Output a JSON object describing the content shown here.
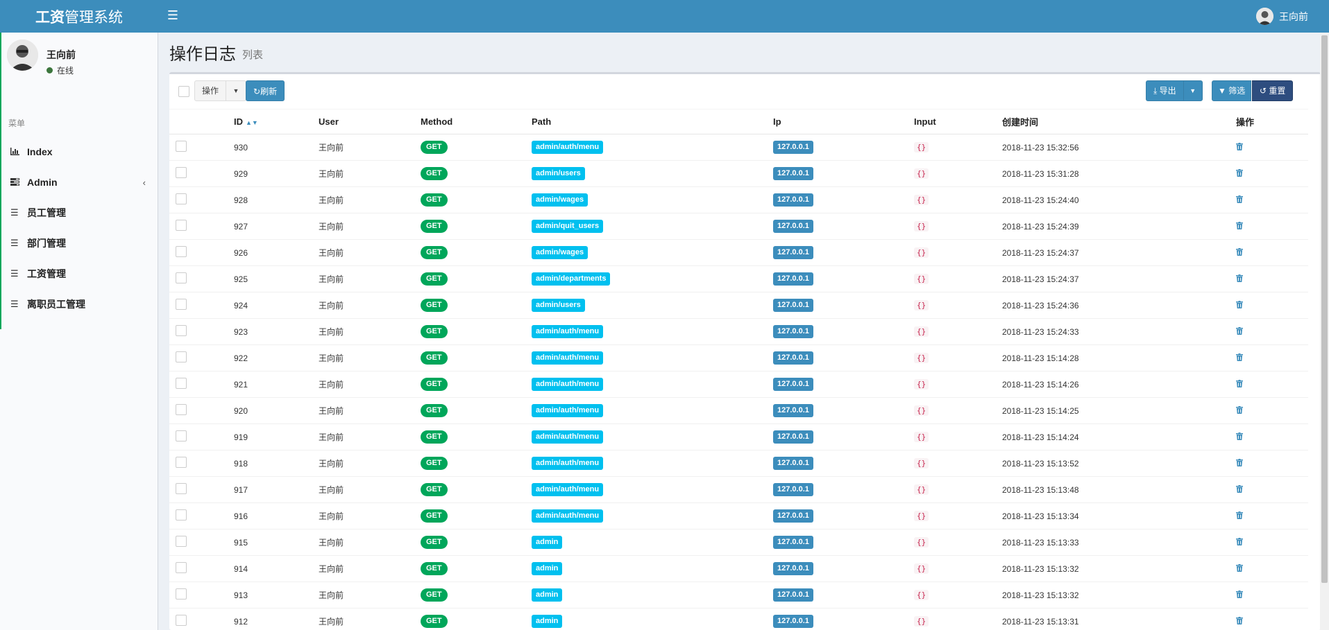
{
  "header": {
    "logo_bold": "工资",
    "logo_rest": "管理系统",
    "user_name": "王向前"
  },
  "sidebar": {
    "user_name": "王向前",
    "status": "在线",
    "menu_header": "菜单",
    "items": [
      {
        "label": "Index",
        "icon": "bar-chart-icon"
      },
      {
        "label": "Admin",
        "icon": "tasks-icon",
        "has_children": true
      },
      {
        "label": "员工管理",
        "icon": "bars-icon"
      },
      {
        "label": "部门管理",
        "icon": "bars-icon"
      },
      {
        "label": "工资管理",
        "icon": "bars-icon"
      },
      {
        "label": "离职员工管理",
        "icon": "bars-icon"
      }
    ]
  },
  "page": {
    "title": "操作日志",
    "subtitle": "列表"
  },
  "toolbar": {
    "operation_label": "操作",
    "refresh_label": "刷新",
    "export_label": "导出",
    "filter_label": "筛选",
    "reset_label": "重置"
  },
  "table": {
    "columns": [
      "ID",
      "User",
      "Method",
      "Path",
      "Ip",
      "Input",
      "创建时间",
      "操作"
    ],
    "rows": [
      {
        "id": "930",
        "user": "王向前",
        "method": "GET",
        "path": "admin/auth/menu",
        "ip": "127.0.0.1",
        "input": "{}",
        "created": "2018-11-23 15:32:56"
      },
      {
        "id": "929",
        "user": "王向前",
        "method": "GET",
        "path": "admin/users",
        "ip": "127.0.0.1",
        "input": "{}",
        "created": "2018-11-23 15:31:28"
      },
      {
        "id": "928",
        "user": "王向前",
        "method": "GET",
        "path": "admin/wages",
        "ip": "127.0.0.1",
        "input": "{}",
        "created": "2018-11-23 15:24:40"
      },
      {
        "id": "927",
        "user": "王向前",
        "method": "GET",
        "path": "admin/quit_users",
        "ip": "127.0.0.1",
        "input": "{}",
        "created": "2018-11-23 15:24:39"
      },
      {
        "id": "926",
        "user": "王向前",
        "method": "GET",
        "path": "admin/wages",
        "ip": "127.0.0.1",
        "input": "{}",
        "created": "2018-11-23 15:24:37"
      },
      {
        "id": "925",
        "user": "王向前",
        "method": "GET",
        "path": "admin/departments",
        "ip": "127.0.0.1",
        "input": "{}",
        "created": "2018-11-23 15:24:37"
      },
      {
        "id": "924",
        "user": "王向前",
        "method": "GET",
        "path": "admin/users",
        "ip": "127.0.0.1",
        "input": "{}",
        "created": "2018-11-23 15:24:36"
      },
      {
        "id": "923",
        "user": "王向前",
        "method": "GET",
        "path": "admin/auth/menu",
        "ip": "127.0.0.1",
        "input": "{}",
        "created": "2018-11-23 15:24:33"
      },
      {
        "id": "922",
        "user": "王向前",
        "method": "GET",
        "path": "admin/auth/menu",
        "ip": "127.0.0.1",
        "input": "{}",
        "created": "2018-11-23 15:14:28"
      },
      {
        "id": "921",
        "user": "王向前",
        "method": "GET",
        "path": "admin/auth/menu",
        "ip": "127.0.0.1",
        "input": "{}",
        "created": "2018-11-23 15:14:26"
      },
      {
        "id": "920",
        "user": "王向前",
        "method": "GET",
        "path": "admin/auth/menu",
        "ip": "127.0.0.1",
        "input": "{}",
        "created": "2018-11-23 15:14:25"
      },
      {
        "id": "919",
        "user": "王向前",
        "method": "GET",
        "path": "admin/auth/menu",
        "ip": "127.0.0.1",
        "input": "{}",
        "created": "2018-11-23 15:14:24"
      },
      {
        "id": "918",
        "user": "王向前",
        "method": "GET",
        "path": "admin/auth/menu",
        "ip": "127.0.0.1",
        "input": "{}",
        "created": "2018-11-23 15:13:52"
      },
      {
        "id": "917",
        "user": "王向前",
        "method": "GET",
        "path": "admin/auth/menu",
        "ip": "127.0.0.1",
        "input": "{}",
        "created": "2018-11-23 15:13:48"
      },
      {
        "id": "916",
        "user": "王向前",
        "method": "GET",
        "path": "admin/auth/menu",
        "ip": "127.0.0.1",
        "input": "{}",
        "created": "2018-11-23 15:13:34"
      },
      {
        "id": "915",
        "user": "王向前",
        "method": "GET",
        "path": "admin",
        "ip": "127.0.0.1",
        "input": "{}",
        "created": "2018-11-23 15:13:33"
      },
      {
        "id": "914",
        "user": "王向前",
        "method": "GET",
        "path": "admin",
        "ip": "127.0.0.1",
        "input": "{}",
        "created": "2018-11-23 15:13:32"
      },
      {
        "id": "913",
        "user": "王向前",
        "method": "GET",
        "path": "admin",
        "ip": "127.0.0.1",
        "input": "{}",
        "created": "2018-11-23 15:13:32"
      },
      {
        "id": "912",
        "user": "王向前",
        "method": "GET",
        "path": "admin",
        "ip": "127.0.0.1",
        "input": "{}",
        "created": "2018-11-23 15:13:31"
      }
    ]
  },
  "colors": {
    "header_bg": "#3c8dbc",
    "get_badge": "#00a65a",
    "path_badge": "#00c0ef",
    "ip_badge": "#3c8dbc",
    "reset_button": "#2e4d7f",
    "online_dot": "#3c763d"
  }
}
